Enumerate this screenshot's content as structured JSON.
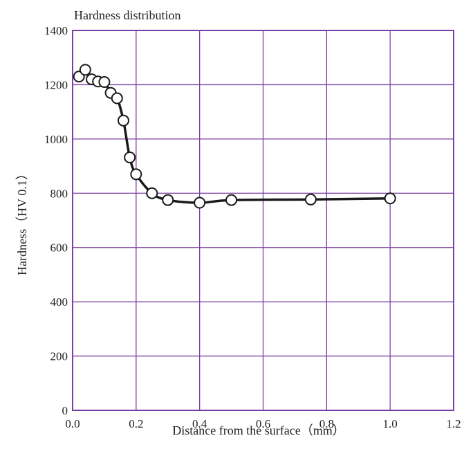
{
  "chart_data": {
    "type": "line",
    "title": "Hardness distribution",
    "xlabel": "Distance from the surface（mm）",
    "ylabel": "Hardness（HV 0.1）",
    "xlim": [
      0,
      1.2
    ],
    "ylim": [
      0,
      1400
    ],
    "xticks": [
      0,
      0.2,
      0.4,
      0.6,
      0.8,
      1.0,
      1.2
    ],
    "xtick_labels": [
      "0.0",
      "0.2",
      "0.4",
      "0.6",
      "0.8",
      "1.0",
      "1.2"
    ],
    "yticks": [
      0,
      200,
      400,
      600,
      800,
      1000,
      1200,
      1400
    ],
    "ytick_labels": [
      "0",
      "200",
      "400",
      "600",
      "800",
      "1000",
      "1200",
      "1400"
    ],
    "grid": true,
    "colors": {
      "grid": "#7b3fa3",
      "line": "#1a1a1a",
      "marker_fill": "#ffffff"
    },
    "series": [
      {
        "x": [
          0.02,
          0.04,
          0.06,
          0.08,
          0.1,
          0.12,
          0.14,
          0.16,
          0.18,
          0.2,
          0.25,
          0.3,
          0.4,
          0.5,
          0.75,
          1.0
        ],
        "y": [
          1230,
          1255,
          1220,
          1212,
          1210,
          1170,
          1150,
          1068,
          932,
          870,
          800,
          775,
          765,
          775,
          777,
          781
        ]
      }
    ]
  }
}
